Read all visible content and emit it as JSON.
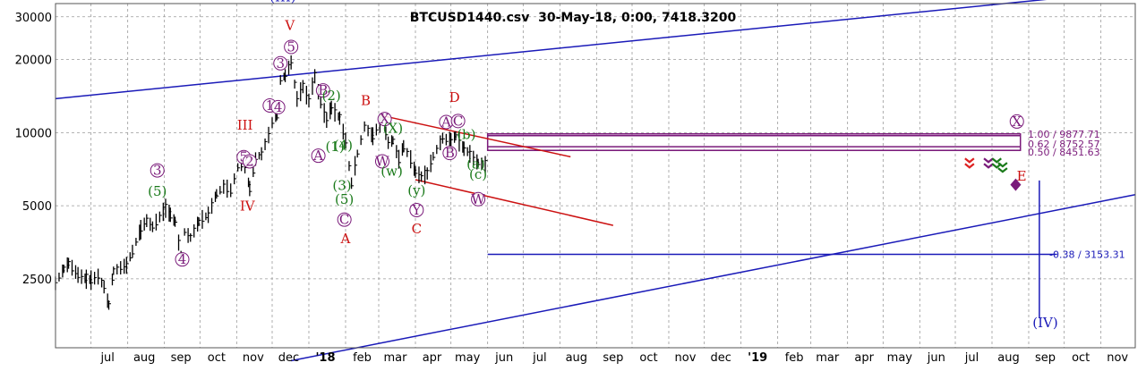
{
  "chart_data": {
    "type": "line",
    "title": "BTCUSD1440.csv  30-May-18, 0:00, 7418.3200",
    "y_scale": "log",
    "grid": true,
    "yticks": [
      {
        "v": 30000,
        "label": "30000"
      },
      {
        "v": 20000,
        "label": "20000"
      },
      {
        "v": 10000,
        "label": "10000"
      },
      {
        "v": 5000,
        "label": "5000"
      },
      {
        "v": 2500,
        "label": "2500"
      }
    ],
    "xticks": [
      {
        "d": "2017-07-15",
        "label": "jul"
      },
      {
        "d": "2017-08-15",
        "label": "aug"
      },
      {
        "d": "2017-09-15",
        "label": "sep"
      },
      {
        "d": "2017-10-15",
        "label": "oct"
      },
      {
        "d": "2017-11-15",
        "label": "nov"
      },
      {
        "d": "2017-12-15",
        "label": "dec"
      },
      {
        "d": "2018-01-15",
        "label": "'18"
      },
      {
        "d": "2018-02-15",
        "label": "feb"
      },
      {
        "d": "2018-03-15",
        "label": "mar"
      },
      {
        "d": "2018-04-15",
        "label": "apr"
      },
      {
        "d": "2018-05-15",
        "label": "may"
      },
      {
        "d": "2018-06-15",
        "label": "jun"
      },
      {
        "d": "2018-07-15",
        "label": "jul"
      },
      {
        "d": "2018-08-15",
        "label": "aug"
      },
      {
        "d": "2018-09-15",
        "label": "sep"
      },
      {
        "d": "2018-10-15",
        "label": "oct"
      },
      {
        "d": "2018-11-15",
        "label": "nov"
      },
      {
        "d": "2018-12-15",
        "label": "dec"
      },
      {
        "d": "2019-01-15",
        "label": "'19"
      },
      {
        "d": "2019-02-15",
        "label": "feb"
      },
      {
        "d": "2019-03-15",
        "label": "mar"
      },
      {
        "d": "2019-04-15",
        "label": "apr"
      },
      {
        "d": "2019-05-15",
        "label": "may"
      },
      {
        "d": "2019-06-15",
        "label": "jun"
      },
      {
        "d": "2019-07-15",
        "label": "jul"
      },
      {
        "d": "2019-08-15",
        "label": "aug"
      },
      {
        "d": "2019-09-15",
        "label": "sep"
      },
      {
        "d": "2019-10-15",
        "label": "oct"
      },
      {
        "d": "2019-11-15",
        "label": "nov"
      }
    ],
    "series": [
      {
        "color": "#000000",
        "points": [
          [
            "2017-06-01",
            2400
          ],
          [
            "2017-06-08",
            2750
          ],
          [
            "2017-06-12",
            2900
          ],
          [
            "2017-06-20",
            2600
          ],
          [
            "2017-06-27",
            2500
          ],
          [
            "2017-07-01",
            2480
          ],
          [
            "2017-07-07",
            2560
          ],
          [
            "2017-07-12",
            2320
          ],
          [
            "2017-07-16",
            1950
          ],
          [
            "2017-07-20",
            2700
          ],
          [
            "2017-07-31",
            2850
          ],
          [
            "2017-08-05",
            3250
          ],
          [
            "2017-08-12",
            4000
          ],
          [
            "2017-08-17",
            4350
          ],
          [
            "2017-08-22",
            4100
          ],
          [
            "2017-08-28",
            4500
          ],
          [
            "2017-09-02",
            4900
          ],
          [
            "2017-09-06",
            4600
          ],
          [
            "2017-09-10",
            4300
          ],
          [
            "2017-09-15",
            3100
          ],
          [
            "2017-09-18",
            3900
          ],
          [
            "2017-09-23",
            3700
          ],
          [
            "2017-09-30",
            4300
          ],
          [
            "2017-10-08",
            4600
          ],
          [
            "2017-10-15",
            5600
          ],
          [
            "2017-10-21",
            6000
          ],
          [
            "2017-10-27",
            5800
          ],
          [
            "2017-11-02",
            7200
          ],
          [
            "2017-11-08",
            7400
          ],
          [
            "2017-11-12",
            5900
          ],
          [
            "2017-11-17",
            7800
          ],
          [
            "2017-11-22",
            8200
          ],
          [
            "2017-11-28",
            9800
          ],
          [
            "2017-12-01",
            11000
          ],
          [
            "2017-12-05",
            11700
          ],
          [
            "2017-12-08",
            16500
          ],
          [
            "2017-12-12",
            17200
          ],
          [
            "2017-12-17",
            19500
          ],
          [
            "2017-12-22",
            13800
          ],
          [
            "2017-12-27",
            15500
          ],
          [
            "2018-01-01",
            13600
          ],
          [
            "2018-01-06",
            17100
          ],
          [
            "2018-01-11",
            13400
          ],
          [
            "2018-01-16",
            11300
          ],
          [
            "2018-01-20",
            12700
          ],
          [
            "2018-01-27",
            11500
          ],
          [
            "2018-02-01",
            9300
          ],
          [
            "2018-02-06",
            6200
          ],
          [
            "2018-02-11",
            8200
          ],
          [
            "2018-02-17",
            10600
          ],
          [
            "2018-02-24",
            9700
          ],
          [
            "2018-03-04",
            11400
          ],
          [
            "2018-03-09",
            9100
          ],
          [
            "2018-03-13",
            9300
          ],
          [
            "2018-03-18",
            7800
          ],
          [
            "2018-03-22",
            8800
          ],
          [
            "2018-03-28",
            7800
          ],
          [
            "2018-04-01",
            6900
          ],
          [
            "2018-04-06",
            6600
          ],
          [
            "2018-04-11",
            6800
          ],
          [
            "2018-04-16",
            8000
          ],
          [
            "2018-04-24",
            9500
          ],
          [
            "2018-05-01",
            9200
          ],
          [
            "2018-05-05",
            9700
          ],
          [
            "2018-05-12",
            8600
          ],
          [
            "2018-05-17",
            8200
          ],
          [
            "2018-05-24",
            7500
          ],
          [
            "2018-05-30",
            7418
          ]
        ]
      }
    ],
    "annotations": [
      {
        "text": "(III)",
        "d": "2017-12-10",
        "v": 34800,
        "color": "#1a1ab8"
      },
      {
        "text": "V",
        "d": "2017-12-16",
        "v": 26500,
        "color": "#cc1111"
      },
      {
        "text": "5",
        "d": "2017-12-17",
        "v": 21600,
        "color": "#7a1a7a",
        "circle": true
      },
      {
        "text": "3",
        "d": "2017-12-08",
        "v": 18500,
        "color": "#7a1a7a",
        "circle": true
      },
      {
        "text": "1",
        "d": "2017-11-29",
        "v": 12400,
        "color": "#7a1a7a",
        "circle": true
      },
      {
        "text": "4",
        "d": "2017-12-06",
        "v": 12200,
        "color": "#7a1a7a",
        "circle": true
      },
      {
        "text": "III",
        "d": "2017-11-08",
        "v": 10300,
        "color": "#cc1111"
      },
      {
        "text": "5",
        "d": "2017-11-07",
        "v": 7600,
        "color": "#7a1a7a",
        "circle": true
      },
      {
        "text": "2",
        "d": "2017-11-12",
        "v": 7300,
        "color": "#7a1a7a",
        "circle": true
      },
      {
        "text": "IV",
        "d": "2017-11-10",
        "v": 4780,
        "color": "#cc1111"
      },
      {
        "text": "3",
        "d": "2017-08-26",
        "v": 6700,
        "color": "#7a1a7a",
        "circle": true
      },
      {
        "text": "(5)",
        "d": "2017-08-26",
        "v": 5500,
        "color": "#1a7a1a"
      },
      {
        "text": "4",
        "d": "2017-09-16",
        "v": 2880,
        "color": "#7a1a7a",
        "circle": true
      },
      {
        "text": "B",
        "d": "2018-01-13",
        "v": 14300,
        "color": "#7a1a7a",
        "circle": true
      },
      {
        "text": "(2)",
        "d": "2018-01-20",
        "v": 13600,
        "color": "#1a7a1a"
      },
      {
        "text": "A",
        "d": "2018-01-09",
        "v": 7700,
        "color": "#7a1a7a",
        "circle": true
      },
      {
        "text": "(4)",
        "d": "2018-01-30",
        "v": 8500,
        "color": "#1a7a1a"
      },
      {
        "text": "(1)",
        "d": "2018-01-23",
        "v": 8400,
        "color": "#1a7a1a"
      },
      {
        "text": "(3)",
        "d": "2018-01-29",
        "v": 5800,
        "color": "#1a7a1a"
      },
      {
        "text": "(5)",
        "d": "2018-01-31",
        "v": 5100,
        "color": "#1a7a1a"
      },
      {
        "text": "C",
        "d": "2018-01-31",
        "v": 4200,
        "color": "#7a1a7a",
        "circle": true
      },
      {
        "text": "A",
        "d": "2018-02-01",
        "v": 3500,
        "color": "#cc1111"
      },
      {
        "text": "B",
        "d": "2018-02-18",
        "v": 13000,
        "color": "#cc1111"
      },
      {
        "text": "X",
        "d": "2018-03-06",
        "v": 10900,
        "color": "#7a1a7a",
        "circle": true
      },
      {
        "text": "(X)",
        "d": "2018-03-13",
        "v": 10000,
        "color": "#1a7a1a"
      },
      {
        "text": "W",
        "d": "2018-03-04",
        "v": 7300,
        "color": "#7a1a7a",
        "circle": true
      },
      {
        "text": "(w)",
        "d": "2018-03-12",
        "v": 6650,
        "color": "#1a7a1a"
      },
      {
        "text": "(y)",
        "d": "2018-04-02",
        "v": 5550,
        "color": "#1a7a1a"
      },
      {
        "text": "Y",
        "d": "2018-04-02",
        "v": 4600,
        "color": "#7a1a7a",
        "circle": true
      },
      {
        "text": "C",
        "d": "2018-04-02",
        "v": 3850,
        "color": "#cc1111"
      },
      {
        "text": "D",
        "d": "2018-05-04",
        "v": 13400,
        "color": "#cc1111"
      },
      {
        "text": "A",
        "d": "2018-04-27",
        "v": 10600,
        "color": "#7a1a7a",
        "circle": true
      },
      {
        "text": "C",
        "d": "2018-05-07",
        "v": 10700,
        "color": "#7a1a7a",
        "circle": true
      },
      {
        "text": "(b)",
        "d": "2018-05-14",
        "v": 9400,
        "color": "#1a7a1a"
      },
      {
        "text": "B",
        "d": "2018-04-30",
        "v": 7900,
        "color": "#7a1a7a",
        "circle": true
      },
      {
        "text": "(a)",
        "d": "2018-05-22",
        "v": 7100,
        "color": "#1a7a1a"
      },
      {
        "text": "(c)",
        "d": "2018-05-24",
        "v": 6450,
        "color": "#1a7a1a"
      },
      {
        "text": "W",
        "d": "2018-05-24",
        "v": 5100,
        "color": "#7a1a7a",
        "circle": true
      },
      {
        "text": "X",
        "d": "2019-08-22",
        "v": 10650,
        "color": "#7a1a7a",
        "circle": true
      },
      {
        "text": "E",
        "d": "2019-08-26",
        "v": 6350,
        "color": "#cc1111"
      },
      {
        "text": "(IV)",
        "d": "2019-09-15",
        "v": 1580,
        "color": "#1a1ab8"
      }
    ],
    "trend_lines": [
      {
        "from": [
          "2017-06-01",
          13800
        ],
        "to": [
          "2019-11-30",
          38500
        ],
        "color": "#1a1ab8"
      },
      {
        "from": [
          "2017-12-17",
          1150
        ],
        "to": [
          "2019-11-30",
          5550
        ],
        "color": "#1a1ab8"
      },
      {
        "from": [
          "2018-03-02",
          11800
        ],
        "to": [
          "2018-08-10",
          7950
        ],
        "color": "#cc1111"
      },
      {
        "from": [
          "2018-04-01",
          6400
        ],
        "to": [
          "2018-09-15",
          4150
        ],
        "color": "#cc1111"
      },
      {
        "from": [
          "2018-06-01",
          3153.31
        ],
        "to": [
          "2019-09-25",
          3153.31
        ],
        "color": "#1a1ab8"
      },
      {
        "from": [
          "2019-09-10",
          6350
        ],
        "to": [
          "2019-09-10",
          1720
        ],
        "color": "#1a1ab8"
      }
    ],
    "fib_levels": [
      {
        "ratio": "1.00",
        "value": 9877.71,
        "label": "1.00 / 9877.71",
        "color": "#7a1a7a"
      },
      {
        "ratio": "0.62",
        "value": 8752.57,
        "label": "0.62 / 8752.57",
        "color": "#7a1a7a"
      },
      {
        "ratio": "0.50",
        "value": 8451.63,
        "label": "0.50 / 8451.63",
        "color": "#7a1a7a"
      },
      {
        "ratio": "-0.38",
        "value": 3153.31,
        "label": "-0.38 / 3153.31",
        "color": "#1a1ab8"
      }
    ],
    "fib_band": {
      "from": "2018-06-01",
      "to": "2019-08-25",
      "top": 9877.71,
      "bottom": 8451.63,
      "color": "#7a1a7a"
    },
    "markers": [
      {
        "d": "2019-07-13",
        "v": 7500,
        "shape": "x",
        "color": "#dd2222"
      },
      {
        "d": "2019-07-29",
        "v": 7500,
        "shape": "x",
        "color": "#7a1a7a"
      },
      {
        "d": "2019-08-05",
        "v": 7500,
        "shape": "x",
        "color": "#1a7a1a"
      },
      {
        "d": "2019-08-10",
        "v": 7200,
        "shape": "x",
        "color": "#1a7a1a"
      },
      {
        "d": "2019-08-21",
        "v": 6100,
        "shape": "diamond",
        "color": "#7a1a7a"
      }
    ]
  }
}
